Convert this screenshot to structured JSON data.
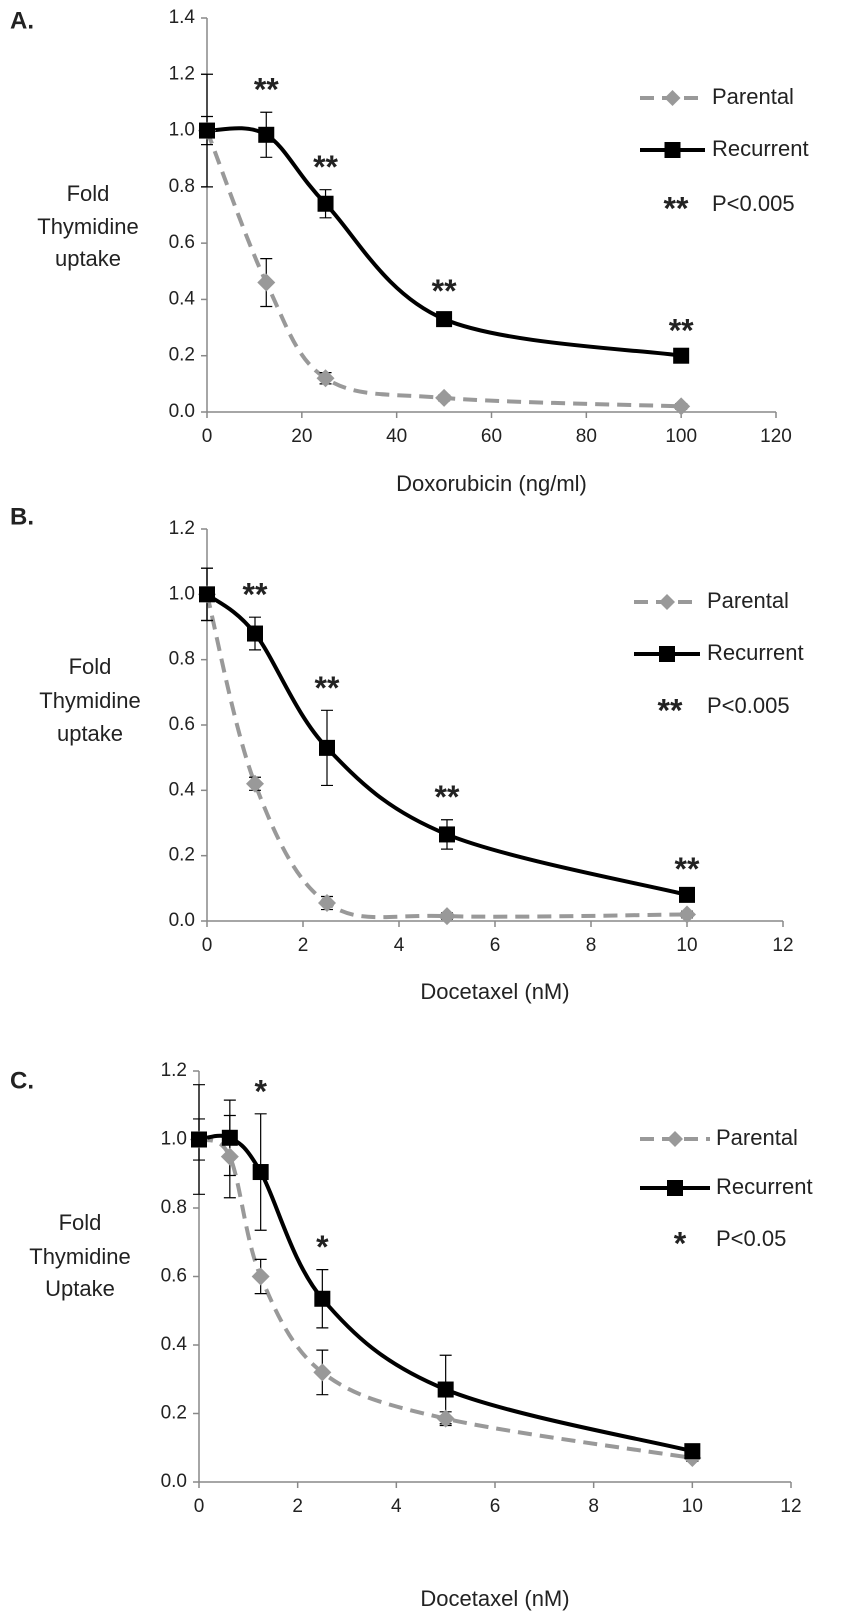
{
  "chart_data": [
    {
      "type": "line",
      "panel_label": "A.",
      "x_label": "Doxorubicin (ng/ml)",
      "y_label": [
        "Fold",
        "Thymidine",
        "uptake"
      ],
      "x": [
        0,
        12.5,
        25,
        50,
        100
      ],
      "series": [
        {
          "name": "Parental",
          "color": "#999999",
          "values": [
            1.0,
            0.46,
            0.12,
            0.05,
            0.02
          ],
          "errors": [
            0.2,
            0.085,
            0.02,
            0.01,
            0.01
          ]
        },
        {
          "name": "Recurrent",
          "color": "#000000",
          "values": [
            1.0,
            0.985,
            0.74,
            0.33,
            0.2
          ],
          "errors": [
            0.05,
            0.08,
            0.05,
            0.02,
            0.01
          ]
        }
      ],
      "significance": [
        null,
        "**",
        "**",
        "**",
        "**"
      ],
      "significance_key": {
        "symbol": "**",
        "label": "P<0.005"
      },
      "xlim": [
        0,
        120
      ],
      "xticks": [
        0,
        20,
        40,
        60,
        80,
        100,
        120
      ],
      "ylim": [
        0,
        1.4
      ],
      "yticks": [
        {
          "value": 0,
          "label": "0.0"
        },
        0.2,
        0.4,
        0.6,
        0.8,
        {
          "value": 1,
          "label": "1.0"
        },
        1.2,
        1.4
      ],
      "grid": false
    },
    {
      "type": "line",
      "panel_label": "B.",
      "x_label": "Docetaxel (nM)",
      "y_label": [
        "Fold",
        "Thymidine",
        "uptake"
      ],
      "x": [
        0,
        1,
        2.5,
        5,
        10
      ],
      "series": [
        {
          "name": "Parental",
          "color": "#999999",
          "values": [
            1.0,
            0.42,
            0.055,
            0.015,
            0.02
          ],
          "errors": [
            0.08,
            0.02,
            0.02,
            0.01,
            0.01
          ]
        },
        {
          "name": "Recurrent",
          "color": "#000000",
          "values": [
            1.0,
            0.88,
            0.53,
            0.265,
            0.08
          ],
          "errors": [
            0.08,
            0.05,
            0.115,
            0.045,
            0.01
          ]
        }
      ],
      "significance": [
        null,
        "**",
        "**",
        "**",
        "**"
      ],
      "significance_key": {
        "symbol": "**",
        "label": "P<0.005"
      },
      "xlim": [
        0,
        12
      ],
      "xticks": [
        0,
        2,
        4,
        6,
        8,
        10,
        12
      ],
      "ylim": [
        0,
        1.2
      ],
      "yticks": [
        {
          "value": 0,
          "label": "0.0"
        },
        0.2,
        0.4,
        0.6,
        0.8,
        {
          "value": 1,
          "label": "1.0"
        },
        1.2
      ],
      "grid": false
    },
    {
      "type": "line",
      "panel_label": "C.",
      "x_label": "Docetaxel (nM)",
      "y_label": [
        "Fold",
        "Thymidine",
        "Uptake"
      ],
      "x": [
        0,
        0.625,
        1.25,
        2.5,
        5,
        10
      ],
      "series": [
        {
          "name": "Parental",
          "color": "#999999",
          "values": [
            1.0,
            0.95,
            0.6,
            0.32,
            0.185,
            0.07
          ],
          "errors": [
            0.16,
            0.12,
            0.05,
            0.065,
            0.02,
            0.01
          ]
        },
        {
          "name": "Recurrent",
          "color": "#000000",
          "values": [
            1.0,
            1.005,
            0.905,
            0.535,
            0.27,
            0.09
          ],
          "errors": [
            0.06,
            0.11,
            0.17,
            0.085,
            0.1,
            0.01
          ]
        }
      ],
      "significance": [
        null,
        null,
        "*",
        "*",
        null,
        null
      ],
      "significance_key": {
        "symbol": "*",
        "label": "P<0.05"
      },
      "xlim": [
        0,
        12
      ],
      "xticks": [
        0,
        2,
        4,
        6,
        8,
        10,
        12
      ],
      "ylim": [
        0,
        1.2
      ],
      "yticks": [
        {
          "value": 0,
          "label": "0.0"
        },
        0.2,
        0.4,
        0.6,
        0.8,
        {
          "value": 1,
          "label": "1.0"
        },
        1.2
      ],
      "grid": false
    }
  ]
}
